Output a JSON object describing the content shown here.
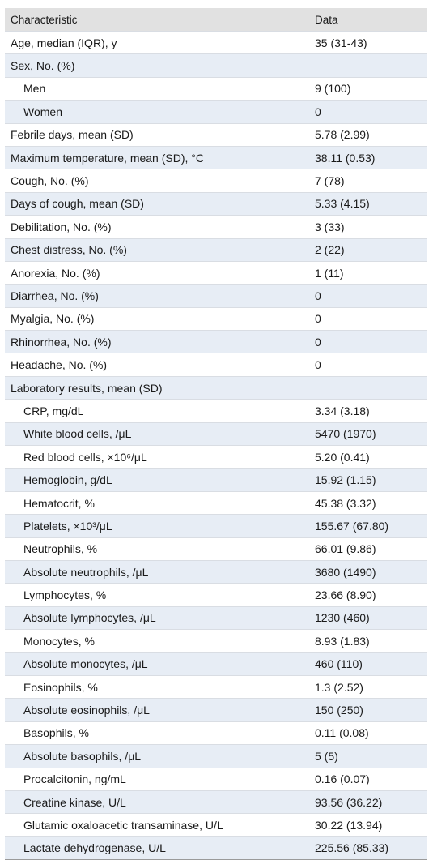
{
  "table": {
    "headers": [
      "Characteristic",
      "Data"
    ],
    "rows": [
      {
        "label": "Age, median (IQR), y",
        "value": "35 (31-43)",
        "indent": false
      },
      {
        "label": "Sex, No. (%)",
        "value": "",
        "indent": false
      },
      {
        "label": "Men",
        "value": "9 (100)",
        "indent": true
      },
      {
        "label": "Women",
        "value": "0",
        "indent": true
      },
      {
        "label": "Febrile days, mean (SD)",
        "value": "5.78 (2.99)",
        "indent": false
      },
      {
        "label": "Maximum temperature, mean (SD), °C",
        "value": "38.11 (0.53)",
        "indent": false
      },
      {
        "label": "Cough, No. (%)",
        "value": "7 (78)",
        "indent": false
      },
      {
        "label": "Days of cough, mean (SD)",
        "value": "5.33 (4.15)",
        "indent": false
      },
      {
        "label": "Debilitation, No. (%)",
        "value": "3 (33)",
        "indent": false
      },
      {
        "label": "Chest distress, No. (%)",
        "value": "2 (22)",
        "indent": false
      },
      {
        "label": "Anorexia, No. (%)",
        "value": "1 (11)",
        "indent": false
      },
      {
        "label": "Diarrhea, No. (%)",
        "value": "0",
        "indent": false
      },
      {
        "label": "Myalgia, No. (%)",
        "value": "0",
        "indent": false
      },
      {
        "label": "Rhinorrhea, No. (%)",
        "value": "0",
        "indent": false
      },
      {
        "label": "Headache, No. (%)",
        "value": "0",
        "indent": false
      },
      {
        "label": "Laboratory results, mean (SD)",
        "value": "",
        "indent": false
      },
      {
        "label": "CRP, mg/dL",
        "value": "3.34 (3.18)",
        "indent": true
      },
      {
        "label": "White blood cells, /μL",
        "value": "5470 (1970)",
        "indent": true
      },
      {
        "label": "Red blood cells, ×10⁶/μL",
        "value": "5.20 (0.41)",
        "indent": true
      },
      {
        "label": "Hemoglobin, g/dL",
        "value": "15.92 (1.15)",
        "indent": true
      },
      {
        "label": "Hematocrit, %",
        "value": "45.38 (3.32)",
        "indent": true
      },
      {
        "label": "Platelets, ×10³/μL",
        "value": "155.67 (67.80)",
        "indent": true
      },
      {
        "label": "Neutrophils, %",
        "value": "66.01 (9.86)",
        "indent": true
      },
      {
        "label": "Absolute neutrophils, /μL",
        "value": "3680 (1490)",
        "indent": true
      },
      {
        "label": "Lymphocytes, %",
        "value": "23.66 (8.90)",
        "indent": true
      },
      {
        "label": "Absolute lymphocytes, /μL",
        "value": "1230 (460)",
        "indent": true
      },
      {
        "label": "Monocytes, %",
        "value": "8.93 (1.83)",
        "indent": true
      },
      {
        "label": "Absolute monocytes, /μL",
        "value": "460 (110)",
        "indent": true
      },
      {
        "label": "Eosinophils, %",
        "value": "1.3 (2.52)",
        "indent": true
      },
      {
        "label": "Absolute eosinophils, /μL",
        "value": "150 (250)",
        "indent": true
      },
      {
        "label": "Basophils, %",
        "value": "0.11 (0.08)",
        "indent": true
      },
      {
        "label": "Absolute basophils, /μL",
        "value": "5 (5)",
        "indent": true
      },
      {
        "label": "Procalcitonin, ng/mL",
        "value": "0.16 (0.07)",
        "indent": true
      },
      {
        "label": "Creatine kinase, U/L",
        "value": "93.56 (36.22)",
        "indent": true
      },
      {
        "label": "Glutamic oxaloacetic transaminase, U/L",
        "value": "30.22 (13.94)",
        "indent": true
      },
      {
        "label": "Lactate dehydrogenase, U/L",
        "value": "225.56 (85.33)",
        "indent": true
      }
    ]
  }
}
